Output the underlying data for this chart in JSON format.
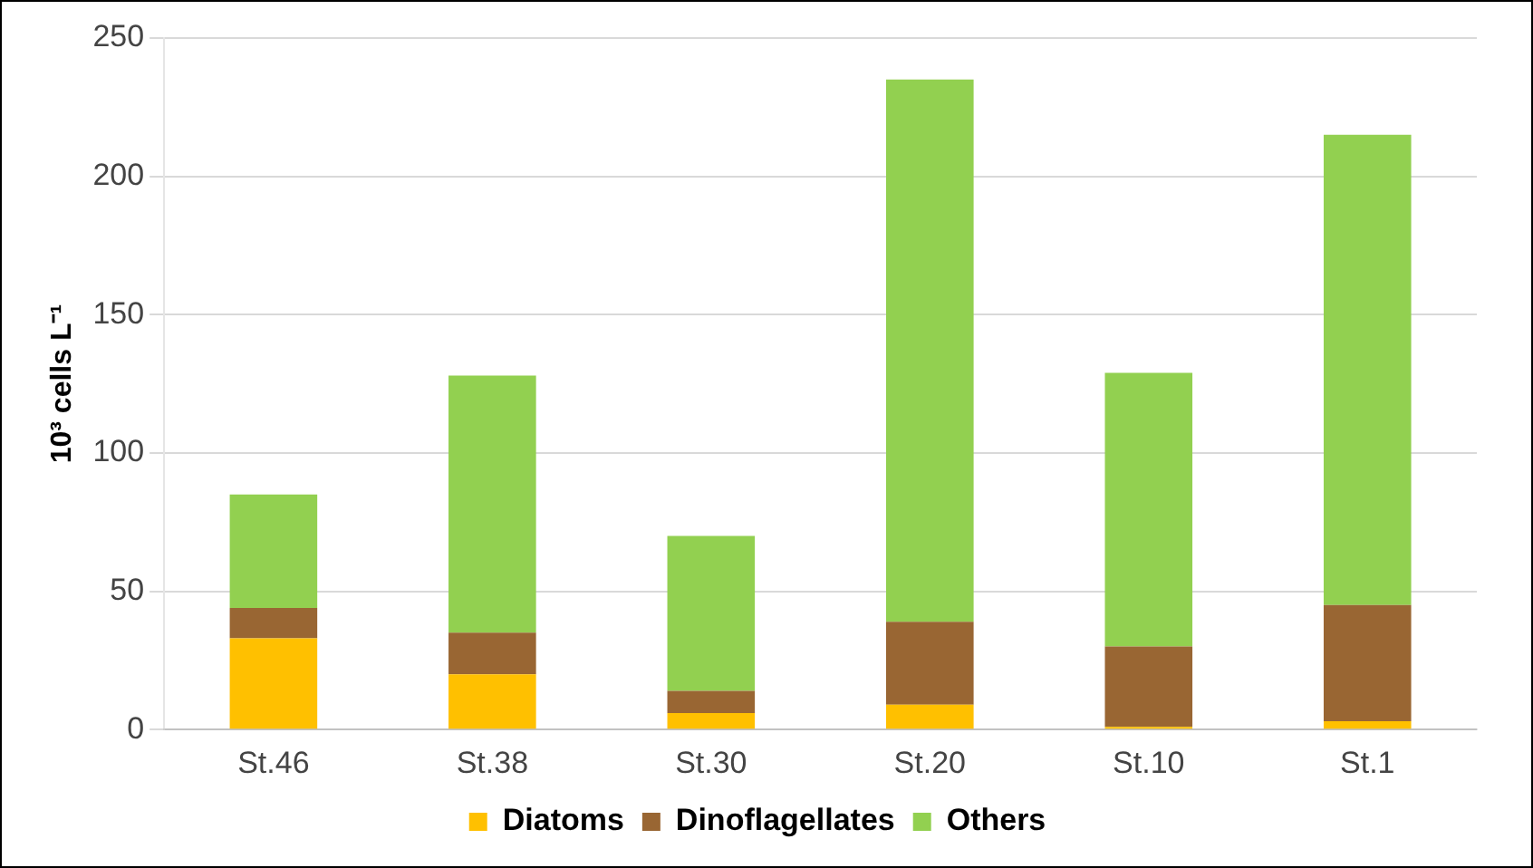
{
  "chart_data": {
    "type": "bar",
    "stacked": true,
    "ylabel": "10³ cells L⁻¹",
    "categories": [
      "St.46",
      "St.38",
      "St.30",
      "St.20",
      "St.10",
      "St.1"
    ],
    "series": [
      {
        "name": "Diatoms",
        "color": "#ffc000",
        "values": [
          33,
          20,
          6,
          9,
          1,
          3
        ]
      },
      {
        "name": "Dinoflagellates",
        "color": "#996633",
        "values": [
          11,
          15,
          8,
          30,
          29,
          42
        ]
      },
      {
        "name": "Others",
        "color": "#92d050",
        "values": [
          41,
          93,
          56,
          196,
          99,
          170
        ]
      }
    ],
    "ylim": [
      0,
      250
    ],
    "yticks": [
      0,
      50,
      100,
      150,
      200,
      250
    ],
    "grid": "y",
    "legend": "bottom"
  }
}
